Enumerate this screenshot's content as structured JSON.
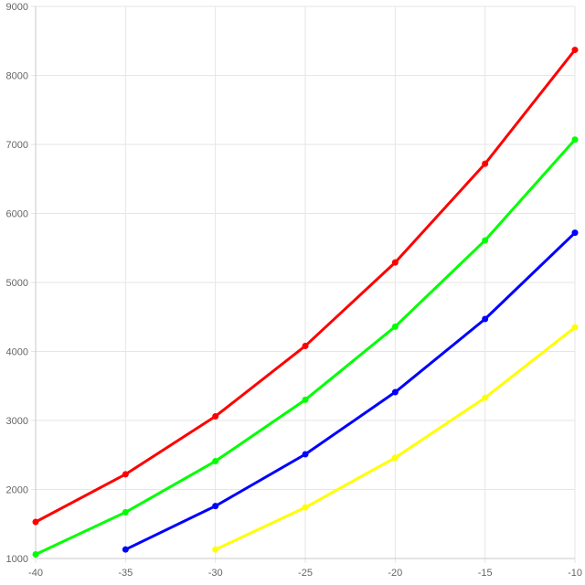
{
  "chart_data": {
    "type": "line",
    "title": "",
    "xlabel": "",
    "ylabel": "",
    "xlim": [
      -40,
      -10
    ],
    "ylim": [
      1000,
      9000
    ],
    "x_ticks": [
      "-40",
      "-35",
      "-30",
      "-25",
      "-20",
      "-15",
      "-10"
    ],
    "y_ticks": [
      "1000",
      "2000",
      "3000",
      "4000",
      "5000",
      "6000",
      "7000",
      "8000",
      "9000"
    ],
    "grid": true,
    "legend": "none",
    "series": [
      {
        "color": "#ff0000",
        "x": [
          -40,
          -35,
          -30,
          -25,
          -20,
          -15,
          -10
        ],
        "y": [
          1530,
          2220,
          3060,
          4080,
          5290,
          6720,
          8370
        ]
      },
      {
        "color": "#00ff00",
        "x": [
          -40,
          -35,
          -30,
          -25,
          -20,
          -15,
          -10
        ],
        "y": [
          1060,
          1670,
          2410,
          3300,
          4360,
          5610,
          7070
        ]
      },
      {
        "color": "#0000ff",
        "x": [
          -35,
          -30,
          -25,
          -20,
          -15,
          -10
        ],
        "y": [
          1130,
          1760,
          2510,
          3410,
          4470,
          5720
        ]
      },
      {
        "color": "#ffff00",
        "x": [
          -30,
          -25,
          -20,
          -15,
          -10
        ],
        "y": [
          1130,
          1740,
          2460,
          3330,
          4350
        ]
      }
    ]
  }
}
